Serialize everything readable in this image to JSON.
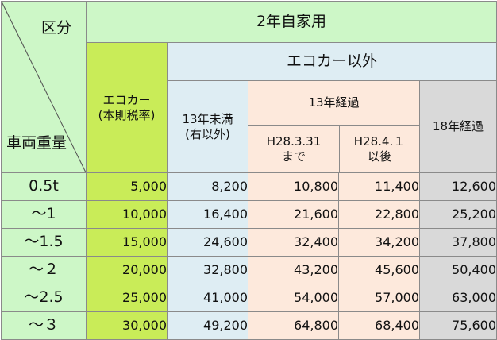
{
  "header": {
    "kubun": "区分",
    "sharyo": "車両重量",
    "jikayo": "2年自家用",
    "eco_car_line1": "エコカー",
    "eco_car_line2": "(本則税率)",
    "eco_car_igai": "エコカー以外",
    "under13_line1": "13年未満",
    "under13_line2": "(右以外)",
    "over13": "13年経過",
    "h28_before_line1": "H28.3.31",
    "h28_before_line2": "まで",
    "h28_after_line1": "H28.4.１",
    "h28_after_line2": "以後",
    "over18": "18年経過"
  },
  "rows": [
    {
      "weight": "0.5t",
      "eco": "5,000",
      "under13": "8,200",
      "h28_before": "10,800",
      "h28_after": "11,400",
      "over18": "12,600"
    },
    {
      "weight": "～1",
      "eco": "10,000",
      "under13": "16,400",
      "h28_before": "21,600",
      "h28_after": "22,800",
      "over18": "25,200"
    },
    {
      "weight": "～1.5",
      "eco": "15,000",
      "under13": "24,600",
      "h28_before": "32,400",
      "h28_after": "34,200",
      "over18": "37,800"
    },
    {
      "weight": "～２",
      "eco": "20,000",
      "under13": "32,800",
      "h28_before": "43,200",
      "h28_after": "45,600",
      "over18": "50,400"
    },
    {
      "weight": "～2.5",
      "eco": "25,000",
      "under13": "41,000",
      "h28_before": "54,000",
      "h28_after": "57,000",
      "over18": "63,000"
    },
    {
      "weight": "～３",
      "eco": "30,000",
      "under13": "49,200",
      "h28_before": "64,800",
      "h28_after": "68,400",
      "over18": "75,600"
    }
  ],
  "colors": {
    "header_green": "#cdf7c7",
    "eco_lime": "#c9ec58",
    "light_blue": "#deedf3",
    "peach": "#fde9dc",
    "gray": "#d9d9d9",
    "border": "#8a8a8a"
  }
}
